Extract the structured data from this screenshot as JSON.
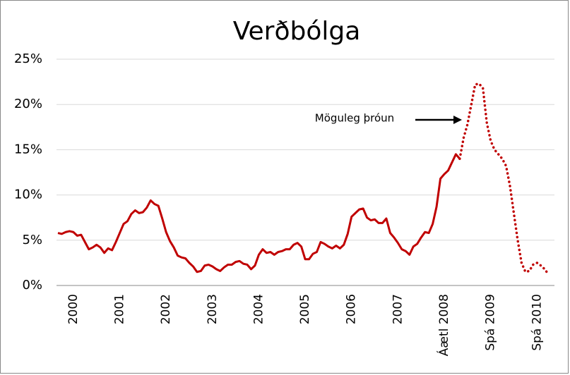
{
  "chart_data": {
    "type": "line",
    "title": "Verðbólga",
    "annotation": "Möguleg þróun",
    "categories": [
      null,
      null,
      null,
      null,
      "2000",
      null,
      null,
      null,
      null,
      null,
      null,
      null,
      null,
      null,
      null,
      null,
      "2001",
      null,
      null,
      null,
      null,
      null,
      null,
      null,
      null,
      null,
      null,
      null,
      "2002",
      null,
      null,
      null,
      null,
      null,
      null,
      null,
      null,
      null,
      null,
      null,
      "2003",
      null,
      null,
      null,
      null,
      null,
      null,
      null,
      null,
      null,
      null,
      null,
      "2004",
      null,
      null,
      null,
      null,
      null,
      null,
      null,
      null,
      null,
      null,
      null,
      "2005",
      null,
      null,
      null,
      null,
      null,
      null,
      null,
      null,
      null,
      null,
      null,
      "2006",
      null,
      null,
      null,
      null,
      null,
      null,
      null,
      null,
      null,
      null,
      null,
      "2007",
      null,
      null,
      null,
      null,
      null,
      null,
      null,
      null,
      null,
      null,
      null,
      "Áætl 2008",
      null,
      null,
      null,
      null,
      null,
      null,
      null,
      null,
      null,
      null,
      null,
      "Spá 2009",
      null,
      null,
      null,
      null,
      null,
      null,
      null,
      null,
      null,
      null,
      null,
      "Spá 2010",
      null,
      null,
      null
    ],
    "series": [
      {
        "color": "#c00000",
        "style": "solid",
        "values": [
          5.8,
          5.7,
          5.9,
          6.0,
          5.9,
          5.5,
          5.6,
          4.8,
          4.0,
          4.2,
          4.5,
          4.2,
          3.6,
          4.1,
          3.9,
          4.8,
          5.8,
          6.8,
          7.1,
          7.9,
          8.3,
          8.0,
          8.1,
          8.6,
          9.4,
          9.0,
          8.8,
          7.4,
          5.9,
          4.9,
          4.2,
          3.3,
          3.1,
          3.0,
          2.5,
          2.1,
          1.5,
          1.6,
          2.2,
          2.3,
          2.1,
          1.8,
          1.6,
          2.0,
          2.3,
          2.3,
          2.6,
          2.7,
          2.4,
          2.3,
          1.8,
          2.2,
          3.4,
          4.0,
          3.6,
          3.7,
          3.4,
          3.7,
          3.8,
          4.0,
          4.0,
          4.5,
          4.7,
          4.3,
          2.9,
          2.9,
          3.5,
          3.7,
          4.8,
          4.6,
          4.3,
          4.1,
          4.4,
          4.1,
          4.5,
          5.7,
          7.6,
          8.0,
          8.4,
          8.5,
          7.5,
          7.2,
          7.3,
          6.9,
          6.9,
          7.4,
          5.8,
          5.3,
          4.7,
          4.0,
          3.8,
          3.4,
          4.3,
          4.6,
          5.3,
          5.9,
          5.8,
          6.8,
          8.7,
          11.8,
          12.3,
          12.7,
          13.6,
          14.5,
          14.0,
          null,
          null,
          null,
          null,
          null,
          null,
          null,
          null,
          null,
          null,
          null,
          null,
          null,
          null,
          null,
          null,
          null,
          null,
          null,
          null,
          null,
          null,
          null
        ]
      },
      {
        "color": "#c00000",
        "style": "dotted",
        "values": [
          null,
          null,
          null,
          null,
          null,
          null,
          null,
          null,
          null,
          null,
          null,
          null,
          null,
          null,
          null,
          null,
          null,
          null,
          null,
          null,
          null,
          null,
          null,
          null,
          null,
          null,
          null,
          null,
          null,
          null,
          null,
          null,
          null,
          null,
          null,
          null,
          null,
          null,
          null,
          null,
          null,
          null,
          null,
          null,
          null,
          null,
          null,
          null,
          null,
          null,
          null,
          null,
          null,
          null,
          null,
          null,
          null,
          null,
          null,
          null,
          null,
          null,
          null,
          null,
          null,
          null,
          null,
          null,
          null,
          null,
          null,
          null,
          null,
          null,
          null,
          null,
          null,
          null,
          null,
          null,
          null,
          null,
          null,
          null,
          null,
          null,
          null,
          null,
          null,
          null,
          null,
          null,
          null,
          null,
          null,
          null,
          null,
          null,
          null,
          null,
          null,
          null,
          null,
          null,
          14.0,
          16.3,
          17.8,
          20.0,
          22.2,
          22.3,
          21.8,
          18.0,
          16.0,
          15.0,
          14.5,
          14.0,
          13.2,
          11.0,
          8.0,
          5.0,
          2.5,
          1.5,
          1.6,
          2.3,
          2.5,
          2.2,
          1.8,
          1.2
        ]
      }
    ],
    "ylim": [
      0,
      25
    ],
    "yticks": [
      {
        "value": 0,
        "label": "0%"
      },
      {
        "value": 5,
        "label": "5%"
      },
      {
        "value": 10,
        "label": "10%"
      },
      {
        "value": 15,
        "label": "15%"
      },
      {
        "value": 20,
        "label": "20%"
      },
      {
        "value": 25,
        "label": "25%"
      }
    ],
    "grid": true
  }
}
